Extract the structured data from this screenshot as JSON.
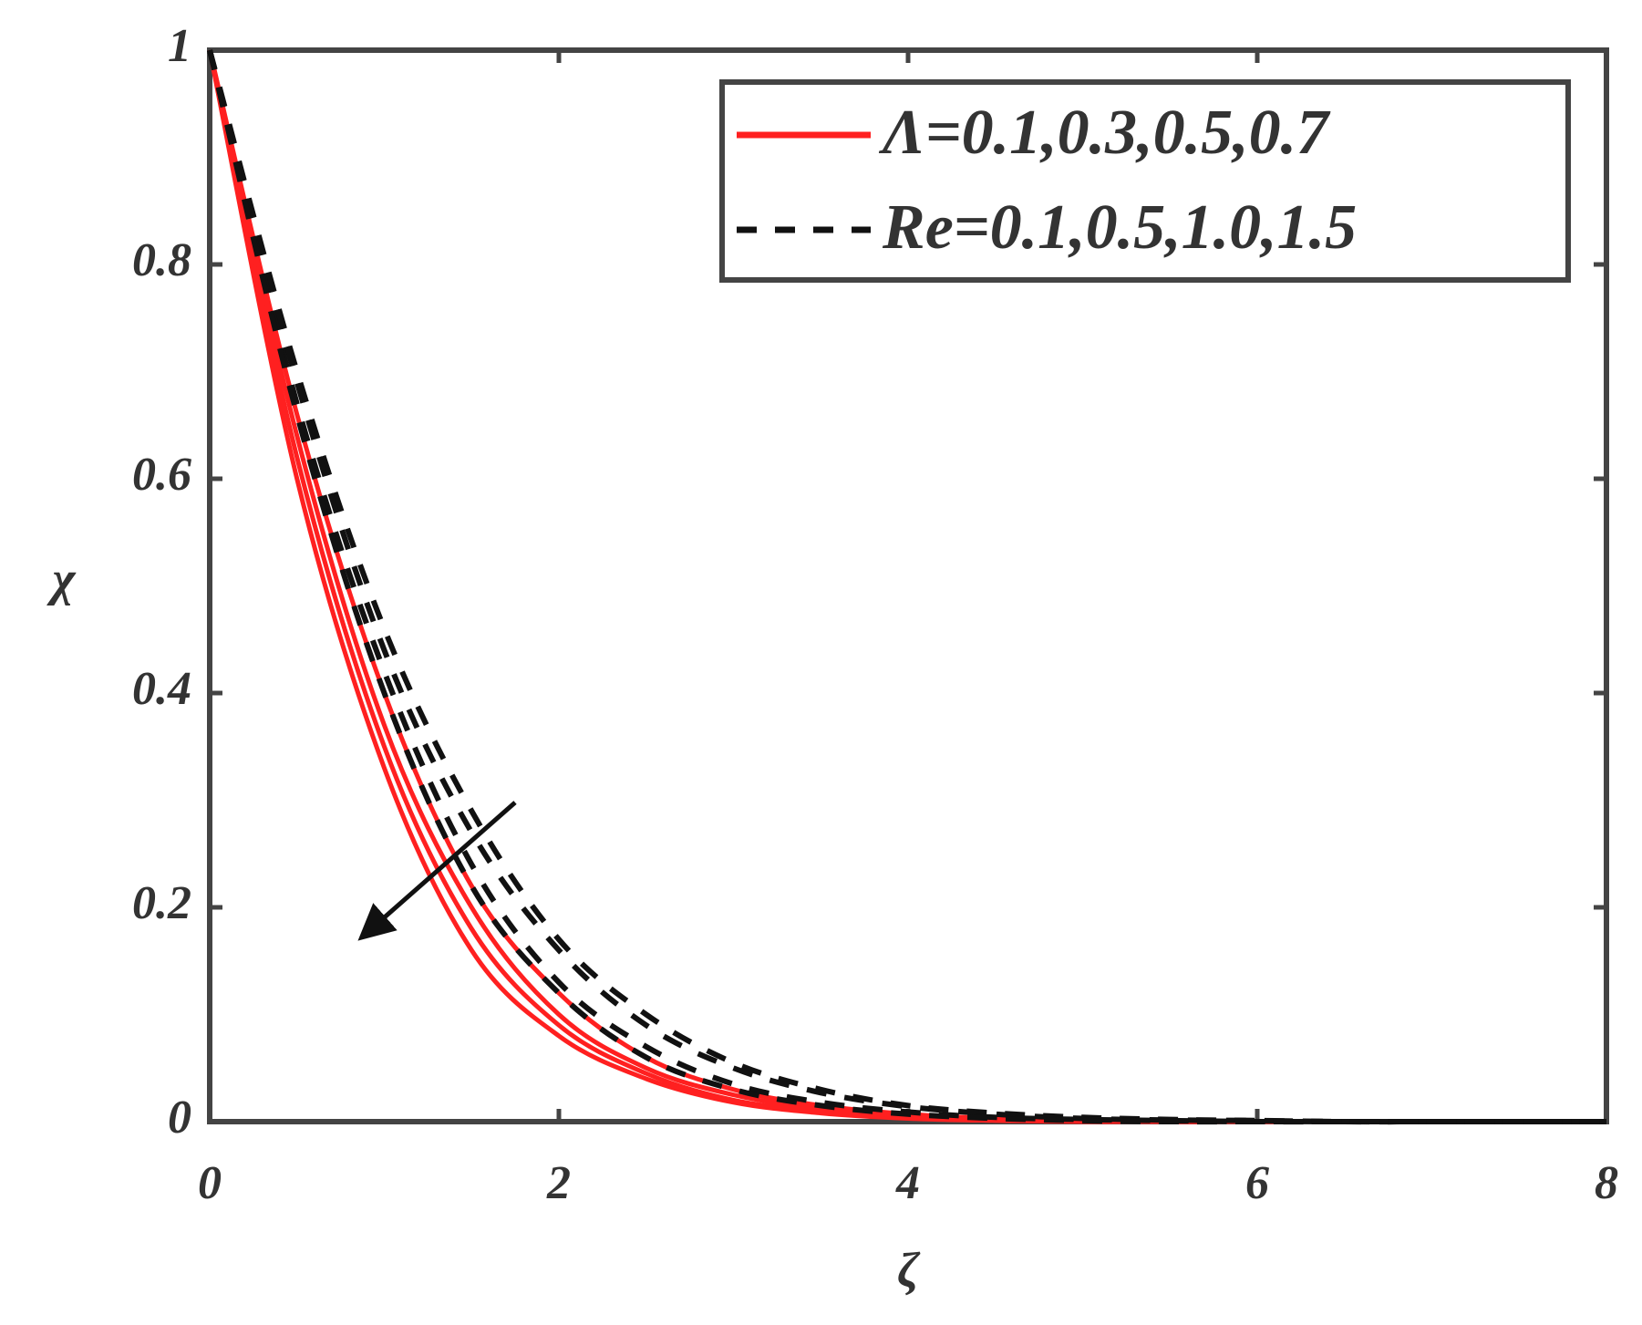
{
  "chart_data": {
    "type": "line",
    "xlabel": "ζ",
    "ylabel": "χ",
    "x": [
      0,
      0.5,
      1,
      1.5,
      2,
      2.5,
      3,
      3.5,
      4,
      4.5,
      5,
      5.5,
      6,
      6.5,
      7,
      7.5,
      8
    ],
    "series": [
      {
        "name": "Λ=0.1,0.3,0.5,0.7",
        "color": "#ff2020",
        "dashed": false,
        "curves": [
          [
            1,
            0.66,
            0.4,
            0.22,
            0.12,
            0.06,
            0.03,
            0.015,
            0.007,
            0.003,
            0.001,
            0,
            0,
            0,
            0,
            0,
            0
          ],
          [
            1,
            0.64,
            0.37,
            0.2,
            0.1,
            0.05,
            0.025,
            0.012,
            0.005,
            0.002,
            0.001,
            0,
            0,
            0,
            0,
            0,
            0
          ],
          [
            1,
            0.62,
            0.35,
            0.18,
            0.09,
            0.045,
            0.02,
            0.01,
            0.004,
            0.002,
            0.001,
            0,
            0,
            0,
            0,
            0,
            0
          ],
          [
            1,
            0.6,
            0.33,
            0.16,
            0.08,
            0.04,
            0.018,
            0.008,
            0.003,
            0.001,
            0,
            0,
            0,
            0,
            0,
            0,
            0
          ]
        ]
      },
      {
        "name": "Re=0.1,0.5,1.0,1.5",
        "color": "#111111",
        "dashed": true,
        "curves": [
          [
            1,
            0.7,
            0.46,
            0.29,
            0.17,
            0.1,
            0.055,
            0.03,
            0.015,
            0.008,
            0.004,
            0.002,
            0.001,
            0,
            0,
            0,
            0
          ],
          [
            1,
            0.69,
            0.44,
            0.27,
            0.16,
            0.09,
            0.05,
            0.027,
            0.014,
            0.007,
            0.003,
            0.0015,
            0.001,
            0,
            0,
            0,
            0
          ],
          [
            1,
            0.67,
            0.42,
            0.24,
            0.13,
            0.07,
            0.035,
            0.018,
            0.009,
            0.004,
            0.002,
            0.001,
            0,
            0,
            0,
            0,
            0
          ],
          [
            1,
            0.66,
            0.4,
            0.22,
            0.12,
            0.06,
            0.03,
            0.015,
            0.007,
            0.003,
            0.001,
            0,
            0,
            0,
            0,
            0,
            0
          ]
        ]
      }
    ],
    "xlim": [
      0,
      8
    ],
    "xticks": [
      0,
      2,
      4,
      6,
      8
    ],
    "ylim": [
      0,
      1
    ],
    "yticks": [
      0,
      0.2,
      0.4,
      0.6,
      0.8,
      1
    ],
    "grid": false,
    "legend": "upper right"
  }
}
